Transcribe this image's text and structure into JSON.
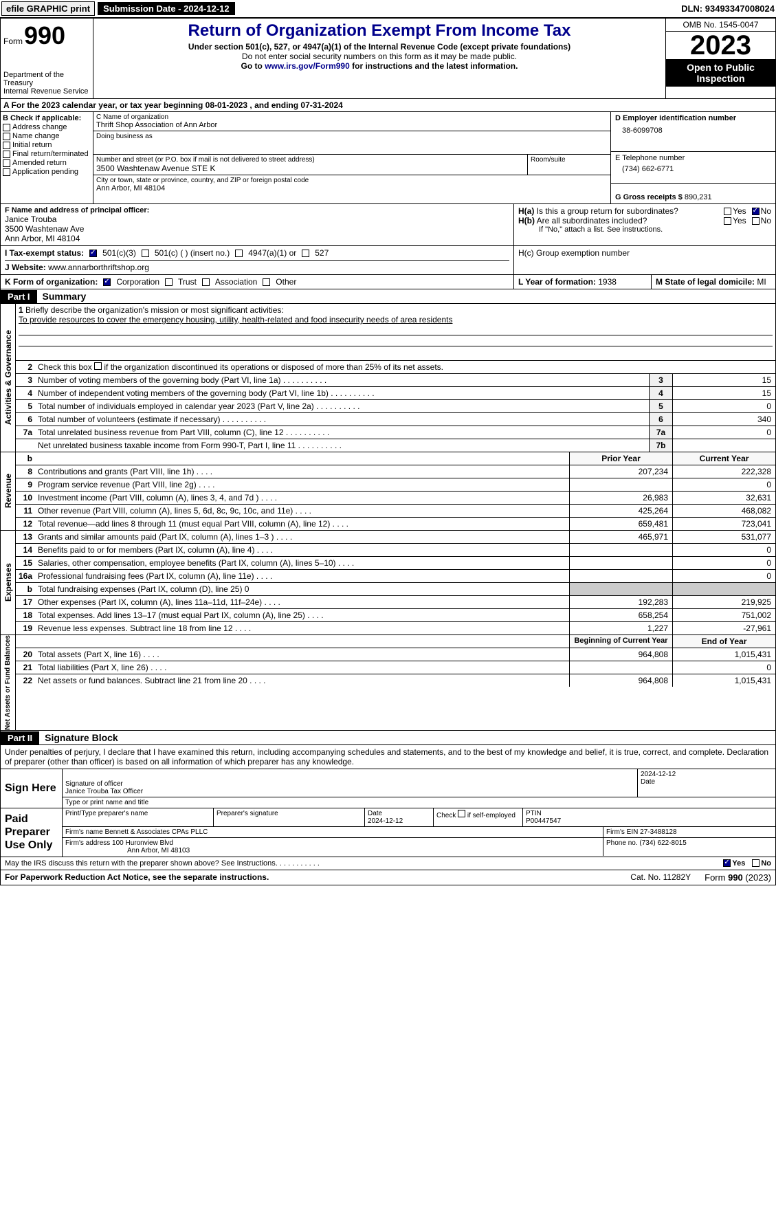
{
  "topbar": {
    "efile": "efile GRAPHIC print",
    "sub_label": "Submission Date",
    "sub_date": "2024-12-12",
    "dln_label": "DLN:",
    "dln": "93493347008024"
  },
  "header": {
    "form_word": "Form",
    "form_num": "990",
    "dept": "Department of the Treasury",
    "irs": "Internal Revenue Service",
    "title": "Return of Organization Exempt From Income Tax",
    "sub1": "Under section 501(c), 527, or 4947(a)(1) of the Internal Revenue Code (except private foundations)",
    "sub2": "Do not enter social security numbers on this form as it may be made public.",
    "sub3_pre": "Go to ",
    "sub3_link": "www.irs.gov/Form990",
    "sub3_post": " for instructions and the latest information.",
    "omb": "OMB No. 1545-0047",
    "year": "2023",
    "inspection": "Open to Public Inspection"
  },
  "period": {
    "text_pre": "A For the 2023 calendar year, or tax year beginning ",
    "begin": "08-01-2023",
    "text_mid": "   , and ending ",
    "end": "07-31-2024"
  },
  "colB": {
    "header": "B Check if applicable:",
    "items": [
      "Address change",
      "Name change",
      "Initial return",
      "Final return/terminated",
      "Amended return",
      "Application pending"
    ]
  },
  "colC": {
    "name_lbl": "C Name of organization",
    "name": "Thrift Shop Association of Ann Arbor",
    "dba_lbl": "Doing business as",
    "street_lbl": "Number and street (or P.O. box if mail is not delivered to street address)",
    "street": "3500 Washtenaw Avenue STE K",
    "room_lbl": "Room/suite",
    "city_lbl": "City or town, state or province, country, and ZIP or foreign postal code",
    "city": "Ann Arbor, MI  48104"
  },
  "colD": {
    "ein_lbl": "D Employer identification number",
    "ein": "38-6099708",
    "tel_lbl": "E Telephone number",
    "tel": "(734) 662-6771",
    "gross_lbl": "G Gross receipts $ ",
    "gross": "890,231"
  },
  "officer": {
    "lbl": "F  Name and address of principal officer:",
    "name": "Janice Trouba",
    "addr1": "3500 Washtenaw Ave",
    "addr2": "Ann Arbor, MI  48104"
  },
  "group": {
    "ha_lbl": "H(a)  Is this a group return for subordinates?",
    "hb_lbl": "H(b)  Are all subordinates included?",
    "hb_note": "If \"No,\" attach a list. See instructions.",
    "hc_lbl": "H(c)  Group exemption number",
    "yes": "Yes",
    "no": "No"
  },
  "tax_status": {
    "lbl": "I  Tax-exempt status:",
    "opt1": "501(c)(3)",
    "opt2": "501(c) (  ) (insert no.)",
    "opt3": "4947(a)(1) or",
    "opt4": "527"
  },
  "website": {
    "lbl": "J  Website:",
    "val": "www.annarborthriftshop.org"
  },
  "formorg": {
    "lbl": "K Form of organization:",
    "opts": [
      "Corporation",
      "Trust",
      "Association",
      "Other"
    ],
    "year_lbl": "L Year of formation: ",
    "year": "1938",
    "state_lbl": "M State of legal domicile: ",
    "state": "MI"
  },
  "part1": {
    "tag": "Part I",
    "title": "Summary"
  },
  "mission": {
    "lbl": "Briefly describe the organization's mission or most significant activities:",
    "txt": "To provide resources to cover the emergency housing, utility, health-related and food insecurity needs of area residents"
  },
  "line2": "Check this box      if the organization discontinued its operations or disposed of more than 25% of its net assets.",
  "ag_label": "Activities & Governance",
  "rev_label": "Revenue",
  "exp_label": "Expenses",
  "na_label": "Net Assets or Fund Balances",
  "lines_ag": [
    {
      "n": "3",
      "d": "Number of voting members of the governing body (Part VI, line 1a)",
      "b": "3",
      "v": "15"
    },
    {
      "n": "4",
      "d": "Number of independent voting members of the governing body (Part VI, line 1b)",
      "b": "4",
      "v": "15"
    },
    {
      "n": "5",
      "d": "Total number of individuals employed in calendar year 2023 (Part V, line 2a)",
      "b": "5",
      "v": "0"
    },
    {
      "n": "6",
      "d": "Total number of volunteers (estimate if necessary)",
      "b": "6",
      "v": "340"
    },
    {
      "n": "7a",
      "d": "Total unrelated business revenue from Part VIII, column (C), line 12",
      "b": "7a",
      "v": "0"
    },
    {
      "n": "",
      "d": "Net unrelated business taxable income from Form 990-T, Part I, line 11",
      "b": "7b",
      "v": ""
    }
  ],
  "rev_hdr": {
    "prior": "Prior Year",
    "curr": "Current Year"
  },
  "lines_rev": [
    {
      "n": "8",
      "d": "Contributions and grants (Part VIII, line 1h)",
      "p": "207,234",
      "c": "222,328"
    },
    {
      "n": "9",
      "d": "Program service revenue (Part VIII, line 2g)",
      "p": "",
      "c": "0"
    },
    {
      "n": "10",
      "d": "Investment income (Part VIII, column (A), lines 3, 4, and 7d )",
      "p": "26,983",
      "c": "32,631"
    },
    {
      "n": "11",
      "d": "Other revenue (Part VIII, column (A), lines 5, 6d, 8c, 9c, 10c, and 11e)",
      "p": "425,264",
      "c": "468,082"
    },
    {
      "n": "12",
      "d": "Total revenue—add lines 8 through 11 (must equal Part VIII, column (A), line 12)",
      "p": "659,481",
      "c": "723,041"
    }
  ],
  "lines_exp": [
    {
      "n": "13",
      "d": "Grants and similar amounts paid (Part IX, column (A), lines 1–3 )",
      "p": "465,971",
      "c": "531,077"
    },
    {
      "n": "14",
      "d": "Benefits paid to or for members (Part IX, column (A), line 4)",
      "p": "",
      "c": "0"
    },
    {
      "n": "15",
      "d": "Salaries, other compensation, employee benefits (Part IX, column (A), lines 5–10)",
      "p": "",
      "c": "0"
    },
    {
      "n": "16a",
      "d": "Professional fundraising fees (Part IX, column (A), line 11e)",
      "p": "",
      "c": "0"
    },
    {
      "n": "b",
      "d": "Total fundraising expenses (Part IX, column (D), line 25) 0",
      "p": "__SHADE__",
      "c": "__SHADE__"
    },
    {
      "n": "17",
      "d": "Other expenses (Part IX, column (A), lines 11a–11d, 11f–24e)",
      "p": "192,283",
      "c": "219,925"
    },
    {
      "n": "18",
      "d": "Total expenses. Add lines 13–17 (must equal Part IX, column (A), line 25)",
      "p": "658,254",
      "c": "751,002"
    },
    {
      "n": "19",
      "d": "Revenue less expenses. Subtract line 18 from line 12",
      "p": "1,227",
      "c": "-27,961"
    }
  ],
  "na_hdr": {
    "prior": "Beginning of Current Year",
    "curr": "End of Year"
  },
  "lines_na": [
    {
      "n": "20",
      "d": "Total assets (Part X, line 16)",
      "p": "964,808",
      "c": "1,015,431"
    },
    {
      "n": "21",
      "d": "Total liabilities (Part X, line 26)",
      "p": "",
      "c": "0"
    },
    {
      "n": "22",
      "d": "Net assets or fund balances. Subtract line 21 from line 20",
      "p": "964,808",
      "c": "1,015,431"
    }
  ],
  "part2": {
    "tag": "Part II",
    "title": "Signature Block"
  },
  "sig": {
    "intro": "Under penalties of perjury, I declare that I have examined this return, including accompanying schedules and statements, and to the best of my knowledge and belief, it is true, correct, and complete. Declaration of preparer (other than officer) is based on all information of which preparer has any knowledge.",
    "sign_here": "Sign Here",
    "off_sig_lbl": "Signature of officer",
    "off_name": "Janice Trouba  Tax Officer",
    "off_type_lbl": "Type or print name and title",
    "date_lbl": "Date",
    "date": "2024-12-12",
    "paid": "Paid Preparer Use Only",
    "prep_name_lbl": "Print/Type preparer's name",
    "prep_sig_lbl": "Preparer's signature",
    "prep_date_lbl": "Date",
    "prep_date": "2024-12-12",
    "self_lbl": "Check       if self-employed",
    "ptin_lbl": "PTIN",
    "ptin": "P00447547",
    "firm_name_lbl": "Firm's name",
    "firm_name": "Bennett & Associates CPAs PLLC",
    "firm_ein_lbl": "Firm's EIN",
    "firm_ein": "27-3488128",
    "firm_addr_lbl": "Firm's address",
    "firm_addr1": "100 Huronview Blvd",
    "firm_addr2": "Ann Arbor, MI  48103",
    "firm_phone_lbl": "Phone no.",
    "firm_phone": "(734) 622-8015",
    "discuss": "May the IRS discuss this return with the preparer shown above? See Instructions.",
    "yes": "Yes",
    "no": "No"
  },
  "footer": {
    "left": "For Paperwork Reduction Act Notice, see the separate instructions.",
    "mid": "Cat. No. 11282Y",
    "right_pre": "Form ",
    "right_form": "990",
    "right_post": " (2023)"
  }
}
